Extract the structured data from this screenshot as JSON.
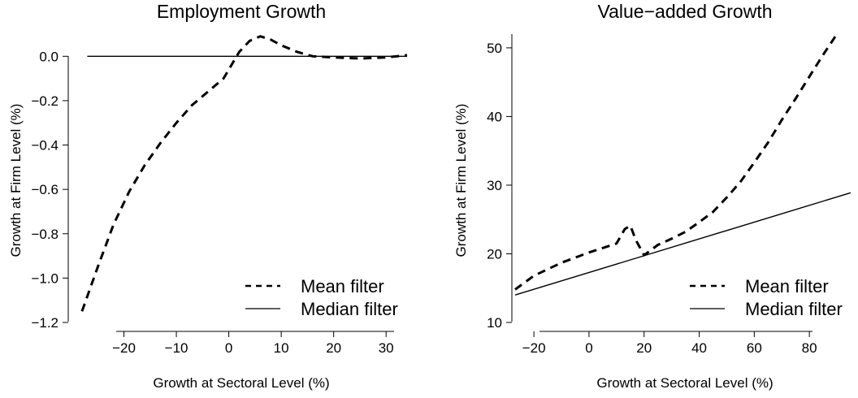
{
  "chart_data": [
    {
      "type": "line",
      "title": "Employment Growth",
      "xlabel": "Growth at Sectoral Level (%)",
      "ylabel": "Growth at Firm Level (%)",
      "xlim": [
        -30,
        34
      ],
      "ylim": [
        -1.2,
        0.1
      ],
      "xticks": [
        -20,
        -10,
        0,
        10,
        20,
        30
      ],
      "yticks": [
        0.0,
        -0.2,
        -0.4,
        -0.6,
        -0.8,
        -1.0,
        -1.2
      ],
      "xtick_labels": [
        "−20",
        "−10",
        "0",
        "10",
        "20",
        "30"
      ],
      "ytick_labels": [
        "0.0",
        "−0.2",
        "−0.4",
        "−0.6",
        "−0.8",
        "−1.0",
        "−1.2"
      ],
      "legend_position": "bottom-right",
      "grid": false,
      "series": [
        {
          "name": "Mean filter",
          "style": "dashed",
          "x": [
            -28,
            -25,
            -22,
            -19,
            -16,
            -13,
            -10,
            -7,
            -4,
            -1,
            0,
            1,
            2,
            4,
            6,
            8,
            10,
            13,
            16,
            20,
            25,
            30,
            34
          ],
          "y": [
            -1.15,
            -0.95,
            -0.76,
            -0.61,
            -0.49,
            -0.39,
            -0.3,
            -0.22,
            -0.16,
            -0.1,
            -0.06,
            -0.02,
            0.02,
            0.07,
            0.09,
            0.075,
            0.05,
            0.02,
            0.0,
            -0.005,
            -0.01,
            -0.005,
            0.005
          ]
        },
        {
          "name": "Median filter",
          "style": "solid",
          "x": [
            -27,
            34
          ],
          "y": [
            0.0,
            0.0
          ]
        }
      ]
    },
    {
      "type": "line",
      "title": "Value−added Growth",
      "xlabel": "Growth at Sectoral Level (%)",
      "ylabel": "Growth at Firm Level (%)",
      "xlim": [
        -28,
        95
      ],
      "ylim": [
        10,
        52
      ],
      "xticks": [
        -20,
        0,
        20,
        40,
        60,
        80
      ],
      "yticks": [
        10,
        20,
        30,
        40,
        50
      ],
      "xtick_labels": [
        "−20",
        "0",
        "20",
        "40",
        "60",
        "80"
      ],
      "ytick_labels": [
        "10",
        "20",
        "30",
        "40",
        "50"
      ],
      "legend_position": "bottom-right",
      "grid": false,
      "series": [
        {
          "name": "Mean filter",
          "style": "dashed",
          "x": [
            -28,
            -20,
            -10,
            0,
            10,
            13,
            15,
            17,
            20,
            25,
            30,
            35,
            40,
            45,
            50,
            55,
            60,
            65,
            70,
            75,
            80,
            85,
            90
          ],
          "y": [
            14.8,
            16.8,
            18.7,
            20.2,
            21.5,
            23.6,
            24.1,
            22.0,
            19.8,
            21.3,
            22.2,
            23.2,
            24.6,
            26.1,
            28.2,
            30.5,
            33.3,
            36.2,
            39.5,
            42.6,
            45.8,
            49.0,
            52.0
          ]
        },
        {
          "name": "Median filter",
          "style": "solid",
          "x": [
            -28,
            95
          ],
          "y": [
            14.0,
            28.9
          ]
        }
      ]
    }
  ]
}
